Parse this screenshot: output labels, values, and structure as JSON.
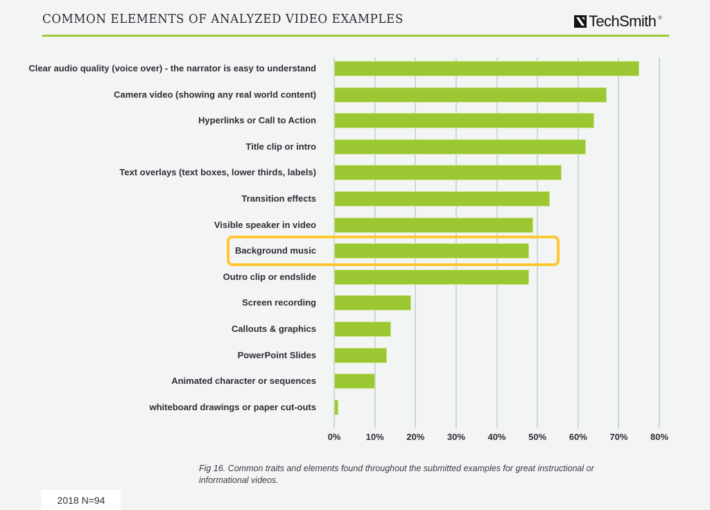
{
  "header": {
    "title": "COMMON ELEMENTS OF ANALYZED VIDEO EXAMPLES",
    "logo_text": "TechSmith",
    "logo_registered": "®",
    "logo_icon": "techsmith-mark-icon"
  },
  "colors": {
    "bar": "#9bc832",
    "rule": "#9dc832",
    "highlight": "#ffc72f",
    "grid": "#cfd6db",
    "background": "#f3f5f5"
  },
  "highlight": {
    "category": "Background music"
  },
  "caption": "Fig 16. Common traits and elements found throughout the submitted examples for great instructional or informational videos.",
  "sample_badge": "2018 N=94",
  "chart_data": {
    "type": "bar",
    "orientation": "horizontal",
    "title": "COMMON ELEMENTS OF ANALYZED VIDEO EXAMPLES",
    "xlabel": "",
    "ylabel": "",
    "xlim": [
      0,
      80
    ],
    "grid": true,
    "legend": null,
    "tick_labels": [
      "0%",
      "10%",
      "20%",
      "30%",
      "40%",
      "50%",
      "60%",
      "70%",
      "80%"
    ],
    "categories": [
      "Clear audio quality (voice over) - the narrator is easy to understand",
      "Camera video (showing any real world content)",
      "Hyperlinks or Call to Action",
      "Title clip or intro",
      "Text overlays (text boxes, lower thirds, labels)",
      "Transition effects",
      "Visible speaker in video",
      "Background music",
      "Outro clip or endslide",
      "Screen recording",
      "Callouts & graphics",
      "PowerPoint Slides",
      "Animated character or sequences",
      "whiteboard drawings or paper cut-outs"
    ],
    "values": [
      75,
      67,
      64,
      62,
      56,
      53,
      49,
      48,
      48,
      19,
      14,
      13,
      10,
      1
    ],
    "unit": "%",
    "annotations": [
      "Background music row highlighted with yellow rounded box"
    ]
  }
}
